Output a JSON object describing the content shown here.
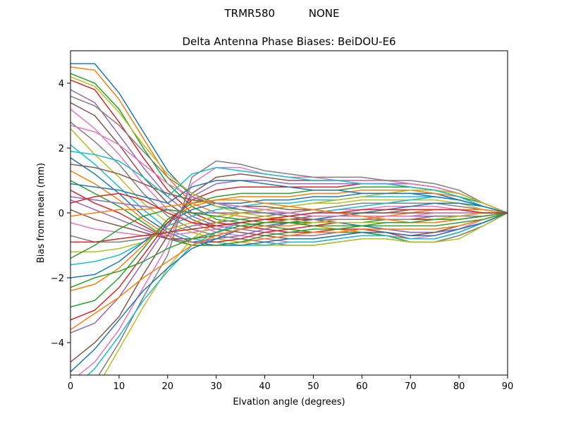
{
  "chart_data": {
    "type": "line",
    "suptitle": "TRMR580          NONE",
    "title": "Delta Antenna Phase Biases: BeiDOU-E6",
    "xlabel": "Elvation angle (degrees)",
    "ylabel": "Bias from mean (mm)",
    "xlim": [
      0,
      90
    ],
    "ylim": [
      -5,
      5
    ],
    "xticks": [
      0,
      10,
      20,
      30,
      40,
      50,
      60,
      70,
      80,
      90
    ],
    "yticks": [
      -4,
      -2,
      0,
      2,
      4
    ],
    "ytick_labels": [
      "−4",
      "−2",
      "0",
      "2",
      "4"
    ],
    "grid": false,
    "legend": "none",
    "colors": [
      "#1f77b4",
      "#ff7f0e",
      "#2ca02c",
      "#d62728",
      "#9467bd",
      "#8c564b",
      "#e377c2",
      "#7f7f7f",
      "#bcbd22",
      "#17becf"
    ],
    "x": [
      0,
      5,
      10,
      15,
      20,
      25,
      30,
      35,
      40,
      45,
      50,
      55,
      60,
      65,
      70,
      75,
      80,
      85,
      90
    ],
    "series": [
      {
        "values": [
          4.6,
          4.6,
          3.7,
          2.5,
          1.3,
          0.5,
          0.2,
          0.1,
          0.0,
          -0.1,
          -0.2,
          -0.3,
          -0.4,
          -0.5,
          -0.6,
          -0.6,
          -0.5,
          -0.3,
          0
        ]
      },
      {
        "values": [
          4.5,
          4.4,
          3.5,
          2.3,
          1.1,
          0.3,
          0.0,
          -0.1,
          -0.2,
          -0.3,
          -0.4,
          -0.5,
          -0.6,
          -0.7,
          -0.8,
          -0.8,
          -0.6,
          -0.3,
          0
        ]
      },
      {
        "values": [
          4.3,
          4.0,
          3.2,
          2.0,
          0.9,
          0.2,
          -0.2,
          -0.3,
          -0.4,
          -0.5,
          -0.6,
          -0.6,
          -0.6,
          -0.7,
          -0.9,
          -0.9,
          -0.7,
          -0.4,
          0
        ]
      },
      {
        "values": [
          4.1,
          3.8,
          2.8,
          1.7,
          0.7,
          0.0,
          -0.3,
          -0.4,
          -0.5,
          -0.6,
          -0.6,
          -0.5,
          -0.5,
          -0.6,
          -0.8,
          -0.8,
          -0.6,
          -0.3,
          0
        ]
      },
      {
        "values": [
          3.8,
          3.4,
          2.4,
          1.4,
          0.5,
          -0.1,
          -0.4,
          -0.5,
          -0.6,
          -0.7,
          -0.7,
          -0.6,
          -0.5,
          -0.5,
          -0.6,
          -0.6,
          -0.5,
          -0.3,
          0
        ]
      },
      {
        "values": [
          3.4,
          3.0,
          2.1,
          1.1,
          0.3,
          -0.2,
          -0.5,
          -0.6,
          -0.7,
          -0.8,
          -0.8,
          -0.7,
          -0.6,
          -0.6,
          -0.7,
          -0.6,
          -0.4,
          -0.2,
          0
        ]
      },
      {
        "values": [
          3.2,
          2.6,
          1.8,
          0.9,
          0.1,
          -0.3,
          -0.6,
          -0.7,
          -0.8,
          -0.9,
          -0.9,
          -0.8,
          -0.7,
          -0.7,
          -0.8,
          -0.7,
          -0.5,
          -0.2,
          0
        ]
      },
      {
        "values": [
          2.8,
          2.2,
          1.5,
          0.6,
          -0.1,
          -0.5,
          -0.7,
          -0.8,
          -0.9,
          -1.0,
          -1.0,
          -0.9,
          -0.8,
          -0.8,
          -0.9,
          -0.9,
          -0.7,
          -0.4,
          0
        ]
      },
      {
        "values": [
          2.6,
          1.8,
          1.1,
          0.3,
          -0.3,
          -0.6,
          -0.8,
          -0.9,
          -1.0,
          -1.0,
          -1.0,
          -0.9,
          -0.8,
          -0.8,
          -0.9,
          -0.9,
          -0.8,
          -0.4,
          0
        ]
      },
      {
        "values": [
          2.1,
          1.5,
          0.8,
          0.1,
          -0.5,
          -0.8,
          -0.9,
          -1.0,
          -1.0,
          -0.9,
          -0.9,
          -0.8,
          -0.7,
          -0.7,
          -0.8,
          -0.8,
          -0.6,
          -0.3,
          0
        ]
      },
      {
        "values": [
          1.7,
          1.2,
          0.6,
          -0.1,
          -0.6,
          -0.9,
          -1.0,
          -1.0,
          -0.9,
          -0.8,
          -0.8,
          -0.7,
          -0.6,
          -0.6,
          -0.7,
          -0.7,
          -0.5,
          -0.3,
          0
        ]
      },
      {
        "values": [
          1.3,
          0.9,
          0.4,
          -0.2,
          -0.7,
          -1.0,
          -1.0,
          -0.9,
          -0.8,
          -0.7,
          -0.6,
          -0.6,
          -0.5,
          -0.5,
          -0.5,
          -0.5,
          -0.4,
          -0.2,
          0
        ]
      },
      {
        "values": [
          1.0,
          0.6,
          0.2,
          -0.3,
          -0.8,
          -1.0,
          -1.0,
          -0.9,
          -0.7,
          -0.6,
          -0.5,
          -0.5,
          -0.4,
          -0.4,
          -0.4,
          -0.4,
          -0.3,
          -0.2,
          0
        ]
      },
      {
        "values": [
          0.7,
          0.3,
          0.0,
          -0.4,
          -0.8,
          -0.9,
          -0.9,
          -0.8,
          -0.6,
          -0.5,
          -0.4,
          -0.3,
          -0.3,
          -0.3,
          -0.3,
          -0.3,
          -0.2,
          -0.1,
          0
        ]
      },
      {
        "values": [
          0.4,
          0.1,
          -0.2,
          -0.5,
          -0.8,
          -0.9,
          -0.8,
          -0.7,
          -0.5,
          -0.3,
          -0.2,
          -0.2,
          -0.2,
          -0.1,
          -0.1,
          -0.1,
          -0.1,
          -0.1,
          0
        ]
      },
      {
        "values": [
          0.1,
          -0.2,
          -0.4,
          -0.6,
          -0.8,
          -0.8,
          -0.7,
          -0.5,
          -0.3,
          -0.2,
          -0.1,
          -0.1,
          0.0,
          0.0,
          0.1,
          0.1,
          0.1,
          0.0,
          0
        ]
      },
      {
        "values": [
          -0.3,
          -0.5,
          -0.6,
          -0.7,
          -0.7,
          -0.6,
          -0.5,
          -0.3,
          -0.2,
          -0.1,
          0.0,
          0.1,
          0.1,
          0.2,
          0.2,
          0.2,
          0.1,
          0.1,
          0
        ]
      },
      {
        "values": [
          -0.7,
          -0.9,
          -0.9,
          -0.8,
          -0.6,
          -0.4,
          -0.3,
          -0.2,
          -0.1,
          0.0,
          0.1,
          0.2,
          0.3,
          0.3,
          0.3,
          0.3,
          0.2,
          0.1,
          0
        ]
      },
      {
        "values": [
          -1.2,
          -1.2,
          -1.1,
          -0.9,
          -0.5,
          -0.3,
          -0.1,
          0.0,
          0.1,
          0.2,
          0.3,
          0.3,
          0.4,
          0.4,
          0.4,
          0.4,
          0.3,
          0.1,
          0
        ]
      },
      {
        "values": [
          -1.6,
          -1.5,
          -1.3,
          -0.9,
          -0.4,
          -0.1,
          0.1,
          0.2,
          0.3,
          0.3,
          0.4,
          0.4,
          0.5,
          0.5,
          0.5,
          0.5,
          0.4,
          0.2,
          0
        ]
      },
      {
        "values": [
          -2.0,
          -1.9,
          -1.5,
          -0.9,
          -0.3,
          0.1,
          0.3,
          0.3,
          0.4,
          0.4,
          0.5,
          0.5,
          0.6,
          0.6,
          0.6,
          0.6,
          0.4,
          0.2,
          0
        ]
      },
      {
        "values": [
          -2.4,
          -2.2,
          -1.7,
          -1.0,
          -0.2,
          0.2,
          0.4,
          0.5,
          0.5,
          0.5,
          0.6,
          0.6,
          0.7,
          0.7,
          0.7,
          0.6,
          0.5,
          0.2,
          0
        ]
      },
      {
        "values": [
          -2.9,
          -2.7,
          -2.0,
          -1.1,
          -0.2,
          0.3,
          0.5,
          0.6,
          0.6,
          0.6,
          0.7,
          0.7,
          0.8,
          0.8,
          0.8,
          0.7,
          0.5,
          0.3,
          0
        ]
      },
      {
        "values": [
          -3.3,
          -3.0,
          -2.3,
          -1.3,
          -0.3,
          0.4,
          0.7,
          0.8,
          0.8,
          0.8,
          0.8,
          0.8,
          0.9,
          0.9,
          0.8,
          0.7,
          0.6,
          0.3,
          0
        ]
      },
      {
        "values": [
          -3.7,
          -3.4,
          -2.6,
          -1.5,
          -0.4,
          0.5,
          0.9,
          1.0,
          1.0,
          0.9,
          0.9,
          0.9,
          0.9,
          0.9,
          0.9,
          0.8,
          0.6,
          0.3,
          0
        ]
      },
      {
        "values": [
          -4.6,
          -4.0,
          -3.2,
          -1.9,
          -0.7,
          0.6,
          1.1,
          1.2,
          1.1,
          1.0,
          1.0,
          1.0,
          1.0,
          1.0,
          0.9,
          0.8,
          0.6,
          0.3,
          0
        ]
      },
      {
        "values": [
          -5.2,
          -4.6,
          -3.6,
          -2.3,
          -1.0,
          0.9,
          1.4,
          1.4,
          1.2,
          1.1,
          1.1,
          1.0,
          1.0,
          1.0,
          0.9,
          0.8,
          0.6,
          0.3,
          0
        ]
      },
      {
        "values": [
          -5.8,
          -5.2,
          -4.0,
          -2.6,
          -1.3,
          1.1,
          1.6,
          1.5,
          1.3,
          1.2,
          1.1,
          1.1,
          1.1,
          1.0,
          1.0,
          0.9,
          0.7,
          0.3,
          0
        ]
      },
      {
        "values": [
          -6.2,
          -5.5,
          -4.2,
          -2.9,
          -1.7,
          -0.8,
          -0.3,
          0.0,
          0.1,
          0.2,
          0.3,
          0.4,
          0.5,
          0.6,
          0.7,
          0.7,
          0.6,
          0.3,
          0
        ]
      },
      {
        "values": [
          -5.5,
          -4.8,
          -3.8,
          -2.7,
          -1.8,
          -1.0,
          -0.6,
          -0.3,
          -0.2,
          -0.1,
          0.0,
          0.1,
          0.2,
          0.3,
          0.4,
          0.5,
          0.4,
          0.2,
          0
        ]
      },
      {
        "values": [
          -4.9,
          -4.2,
          -3.3,
          -2.4,
          -1.7,
          -1.1,
          -0.8,
          -0.5,
          -0.4,
          -0.3,
          -0.2,
          -0.1,
          0.0,
          0.1,
          0.2,
          0.3,
          0.3,
          0.2,
          0
        ]
      },
      {
        "values": [
          -3.6,
          -3.1,
          -2.6,
          -2.0,
          -1.5,
          -1.0,
          -0.7,
          -0.5,
          -0.4,
          -0.4,
          -0.3,
          -0.2,
          -0.2,
          -0.1,
          0.0,
          0.1,
          0.1,
          0.1,
          0
        ]
      },
      {
        "values": [
          -2.3,
          -2.0,
          -1.8,
          -1.5,
          -1.1,
          -0.8,
          -0.6,
          -0.4,
          -0.3,
          -0.3,
          -0.3,
          -0.3,
          -0.3,
          -0.2,
          -0.2,
          -0.1,
          -0.1,
          0.0,
          0
        ]
      },
      {
        "values": [
          -0.9,
          -0.9,
          -0.8,
          -0.7,
          -0.6,
          -0.5,
          -0.4,
          -0.3,
          -0.2,
          -0.2,
          -0.2,
          -0.2,
          -0.2,
          -0.2,
          -0.2,
          -0.2,
          -0.1,
          0.0,
          0
        ]
      },
      {
        "values": [
          0.5,
          0.4,
          0.3,
          0.2,
          0.1,
          0.0,
          0.0,
          0.0,
          0.0,
          0.0,
          -0.1,
          -0.1,
          -0.1,
          -0.1,
          -0.1,
          -0.1,
          -0.1,
          0.0,
          0
        ]
      },
      {
        "values": [
          1.5,
          1.4,
          1.2,
          0.9,
          0.6,
          0.4,
          0.3,
          0.2,
          0.2,
          0.1,
          0.1,
          0.0,
          0.0,
          0.0,
          0.0,
          0.0,
          0.0,
          0.0,
          0
        ]
      },
      {
        "values": [
          2.7,
          2.5,
          2.1,
          1.5,
          0.9,
          0.5,
          0.3,
          0.2,
          0.1,
          0.0,
          -0.1,
          -0.1,
          -0.1,
          -0.1,
          -0.1,
          0.0,
          0.0,
          0.0,
          0
        ]
      },
      {
        "values": [
          3.6,
          3.3,
          2.7,
          1.9,
          1.1,
          0.6,
          0.3,
          0.1,
          0.0,
          -0.1,
          -0.2,
          -0.2,
          -0.2,
          -0.2,
          -0.2,
          -0.1,
          -0.1,
          0.0,
          0
        ]
      },
      {
        "values": [
          4.2,
          3.9,
          3.1,
          2.1,
          1.2,
          0.6,
          0.2,
          0.0,
          -0.1,
          -0.2,
          -0.3,
          -0.3,
          -0.3,
          -0.3,
          -0.3,
          -0.2,
          -0.1,
          0.0,
          0
        ]
      },
      {
        "values": [
          1.9,
          1.8,
          1.6,
          1.1,
          0.5,
          1.2,
          1.4,
          1.3,
          1.2,
          1.1,
          1.0,
          1.0,
          0.9,
          0.9,
          0.8,
          0.7,
          0.5,
          0.2,
          0
        ]
      },
      {
        "values": [
          0.9,
          0.8,
          0.7,
          0.5,
          0.3,
          0.8,
          1.0,
          1.0,
          0.9,
          0.8,
          0.7,
          0.7,
          0.6,
          0.6,
          0.6,
          0.5,
          0.4,
          0.2,
          0
        ]
      },
      {
        "values": [
          -0.1,
          0.0,
          0.1,
          0.1,
          0.2,
          0.3,
          0.4,
          0.4,
          0.3,
          0.2,
          0.1,
          0.0,
          -0.1,
          -0.2,
          -0.3,
          -0.3,
          -0.2,
          -0.1,
          0
        ]
      },
      {
        "values": [
          -1.4,
          -1.0,
          -0.5,
          -0.1,
          0.1,
          0.0,
          -0.1,
          -0.2,
          -0.3,
          -0.3,
          -0.4,
          -0.4,
          -0.4,
          -0.3,
          -0.3,
          -0.2,
          -0.2,
          -0.1,
          0
        ]
      },
      {
        "values": [
          0.3,
          0.5,
          0.6,
          0.4,
          0.0,
          -0.3,
          -0.4,
          -0.3,
          -0.2,
          -0.1,
          0.0,
          0.0,
          0.1,
          0.1,
          0.1,
          0.1,
          0.1,
          0.0,
          0
        ]
      }
    ]
  }
}
